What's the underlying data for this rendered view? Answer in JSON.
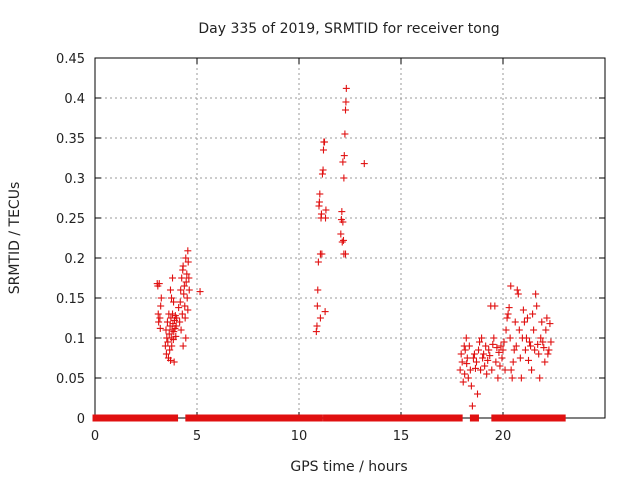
{
  "chart_data": {
    "type": "scatter",
    "title": "Day 335 of 2019, SRMTID for receiver tong",
    "xlabel": "GPS time / hours",
    "ylabel": "SRMTID / TECUs",
    "xlim": [
      0,
      25
    ],
    "ylim": [
      0,
      0.45
    ],
    "x_ticks": [
      0,
      5,
      10,
      15,
      20
    ],
    "y_ticks": [
      0,
      0.05,
      0.1,
      0.15,
      0.2,
      0.25,
      0.3,
      0.35,
      0.4,
      0.45
    ],
    "x_tick_labels": [
      "0",
      "5",
      "10",
      "15",
      "20"
    ],
    "y_tick_labels": [
      "0",
      "0.05",
      "0.1",
      "0.15",
      "0.2",
      "0.25",
      "0.3",
      "0.35",
      "0.4",
      "0.45"
    ],
    "grid": true,
    "marker": "+",
    "color": "#e01010",
    "series": [
      {
        "name": "SRMTID",
        "points": [
          [
            3.05,
            0.168
          ],
          [
            3.08,
            0.165
          ],
          [
            3.1,
            0.13
          ],
          [
            3.12,
            0.12
          ],
          [
            3.15,
            0.168
          ],
          [
            3.18,
            0.125
          ],
          [
            3.2,
            0.112
          ],
          [
            3.22,
            0.14
          ],
          [
            3.25,
            0.15
          ],
          [
            3.45,
            0.09
          ],
          [
            3.48,
            0.11
          ],
          [
            3.5,
            0.08
          ],
          [
            3.52,
            0.1
          ],
          [
            3.55,
            0.12
          ],
          [
            3.57,
            0.095
          ],
          [
            3.6,
            0.075
          ],
          [
            3.62,
            0.13
          ],
          [
            3.64,
            0.105
          ],
          [
            3.66,
            0.085
          ],
          [
            3.68,
            0.115
          ],
          [
            3.7,
            0.072
          ],
          [
            3.72,
            0.125
          ],
          [
            3.74,
            0.1
          ],
          [
            3.76,
            0.09
          ],
          [
            3.78,
            0.11
          ],
          [
            3.8,
            0.13
          ],
          [
            3.82,
            0.118
          ],
          [
            3.84,
            0.098
          ],
          [
            3.86,
            0.108
          ],
          [
            3.88,
            0.07
          ],
          [
            3.9,
            0.122
          ],
          [
            3.92,
            0.112
          ],
          [
            3.94,
            0.128
          ],
          [
            3.96,
            0.102
          ],
          [
            3.98,
            0.115
          ],
          [
            4.0,
            0.125
          ],
          [
            3.7,
            0.16
          ],
          [
            3.75,
            0.15
          ],
          [
            3.8,
            0.175
          ],
          [
            3.85,
            0.145
          ],
          [
            4.1,
            0.138
          ],
          [
            4.15,
            0.12
          ],
          [
            4.18,
            0.145
          ],
          [
            4.2,
            0.16
          ],
          [
            4.22,
            0.11
          ],
          [
            4.25,
            0.175
          ],
          [
            4.28,
            0.13
          ],
          [
            4.3,
            0.185
          ],
          [
            4.32,
            0.19
          ],
          [
            4.35,
            0.155
          ],
          [
            4.38,
            0.165
          ],
          [
            4.4,
            0.14
          ],
          [
            4.42,
            0.125
          ],
          [
            4.45,
            0.2
          ],
          [
            4.47,
            0.17
          ],
          [
            4.5,
            0.18
          ],
          [
            4.52,
            0.15
          ],
          [
            4.55,
            0.135
          ],
          [
            4.57,
            0.195
          ],
          [
            4.6,
            0.175
          ],
          [
            4.62,
            0.16
          ],
          [
            4.32,
            0.09
          ],
          [
            4.45,
            0.1
          ],
          [
            4.55,
            0.209
          ],
          [
            5.15,
            0.158
          ],
          [
            10.85,
            0.108
          ],
          [
            10.88,
            0.115
          ],
          [
            10.9,
            0.14
          ],
          [
            10.92,
            0.16
          ],
          [
            10.95,
            0.195
          ],
          [
            10.98,
            0.265
          ],
          [
            11.0,
            0.27
          ],
          [
            11.02,
            0.28
          ],
          [
            11.05,
            0.205
          ],
          [
            11.08,
            0.25
          ],
          [
            11.1,
            0.255
          ],
          [
            11.12,
            0.205
          ],
          [
            11.15,
            0.305
          ],
          [
            11.18,
            0.31
          ],
          [
            11.2,
            0.335
          ],
          [
            11.22,
            0.345
          ],
          [
            11.25,
            0.345
          ],
          [
            11.28,
            0.133
          ],
          [
            11.3,
            0.25
          ],
          [
            11.32,
            0.26
          ],
          [
            11.05,
            0.125
          ],
          [
            12.05,
            0.23
          ],
          [
            12.08,
            0.248
          ],
          [
            12.1,
            0.258
          ],
          [
            12.12,
            0.22
          ],
          [
            12.15,
            0.245
          ],
          [
            12.18,
            0.222
          ],
          [
            12.2,
            0.3
          ],
          [
            12.22,
            0.328
          ],
          [
            12.25,
            0.355
          ],
          [
            12.28,
            0.385
          ],
          [
            12.3,
            0.395
          ],
          [
            12.32,
            0.412
          ],
          [
            12.2,
            0.205
          ],
          [
            12.28,
            0.205
          ],
          [
            12.15,
            0.32
          ],
          [
            13.2,
            0.318
          ],
          [
            17.9,
            0.06
          ],
          [
            17.95,
            0.08
          ],
          [
            18.0,
            0.07
          ],
          [
            18.05,
            0.045
          ],
          [
            18.1,
            0.09
          ],
          [
            18.12,
            0.055
          ],
          [
            18.15,
            0.085
          ],
          [
            18.2,
            0.1
          ],
          [
            18.22,
            0.068
          ],
          [
            18.25,
            0.075
          ],
          [
            18.3,
            0.05
          ],
          [
            18.35,
            0.09
          ],
          [
            18.4,
            0.06
          ],
          [
            18.45,
            0.04
          ],
          [
            18.5,
            0.015
          ],
          [
            18.55,
            0.075
          ],
          [
            18.6,
            0.08
          ],
          [
            18.65,
            0.062
          ],
          [
            18.7,
            0.07
          ],
          [
            18.75,
            0.03
          ],
          [
            18.8,
            0.085
          ],
          [
            18.85,
            0.095
          ],
          [
            18.9,
            0.06
          ],
          [
            18.95,
            0.1
          ],
          [
            19.0,
            0.075
          ],
          [
            19.05,
            0.08
          ],
          [
            19.1,
            0.065
          ],
          [
            19.15,
            0.09
          ],
          [
            19.2,
            0.055
          ],
          [
            19.25,
            0.072
          ],
          [
            19.3,
            0.085
          ],
          [
            19.35,
            0.078
          ],
          [
            19.4,
            0.14
          ],
          [
            19.45,
            0.06
          ],
          [
            19.5,
            0.092
          ],
          [
            19.55,
            0.1
          ],
          [
            19.6,
            0.14
          ],
          [
            19.65,
            0.07
          ],
          [
            19.7,
            0.088
          ],
          [
            19.75,
            0.05
          ],
          [
            19.8,
            0.082
          ],
          [
            19.85,
            0.065
          ],
          [
            19.9,
            0.09
          ],
          [
            19.95,
            0.075
          ],
          [
            20.0,
            0.085
          ],
          [
            20.05,
            0.095
          ],
          [
            20.1,
            0.06
          ],
          [
            20.15,
            0.11
          ],
          [
            20.2,
            0.125
          ],
          [
            20.25,
            0.13
          ],
          [
            20.3,
            0.138
          ],
          [
            20.35,
            0.1
          ],
          [
            20.38,
            0.165
          ],
          [
            20.4,
            0.06
          ],
          [
            20.45,
            0.05
          ],
          [
            20.5,
            0.07
          ],
          [
            20.55,
            0.085
          ],
          [
            20.6,
            0.12
          ],
          [
            20.65,
            0.09
          ],
          [
            20.7,
            0.16
          ],
          [
            20.75,
            0.155
          ],
          [
            20.8,
            0.11
          ],
          [
            20.85,
            0.075
          ],
          [
            20.9,
            0.05
          ],
          [
            20.95,
            0.1
          ],
          [
            21.0,
            0.135
          ],
          [
            21.05,
            0.12
          ],
          [
            21.1,
            0.085
          ],
          [
            21.15,
            0.1
          ],
          [
            21.2,
            0.125
          ],
          [
            21.25,
            0.072
          ],
          [
            21.3,
            0.095
          ],
          [
            21.35,
            0.09
          ],
          [
            21.4,
            0.06
          ],
          [
            21.45,
            0.13
          ],
          [
            21.5,
            0.11
          ],
          [
            21.55,
            0.085
          ],
          [
            21.6,
            0.155
          ],
          [
            21.65,
            0.14
          ],
          [
            21.7,
            0.092
          ],
          [
            21.75,
            0.08
          ],
          [
            21.8,
            0.05
          ],
          [
            21.85,
            0.1
          ],
          [
            21.9,
            0.12
          ],
          [
            21.95,
            0.095
          ],
          [
            22.0,
            0.088
          ],
          [
            22.05,
            0.07
          ],
          [
            22.1,
            0.11
          ],
          [
            22.15,
            0.125
          ],
          [
            22.2,
            0.08
          ],
          [
            22.25,
            0.085
          ],
          [
            22.3,
            0.118
          ],
          [
            22.35,
            0.095
          ]
        ],
        "baseline_segments": [
          [
            0.05,
            3.5
          ],
          [
            3.7,
            3.9
          ],
          [
            4.6,
            11.0
          ],
          [
            11.35,
            12.1
          ],
          [
            12.3,
            17.55
          ],
          [
            17.75,
            17.85
          ],
          [
            18.55,
            18.65
          ],
          [
            19.6,
            21.95
          ],
          [
            22.15,
            22.35
          ],
          [
            22.5,
            22.9
          ]
        ]
      }
    ]
  }
}
